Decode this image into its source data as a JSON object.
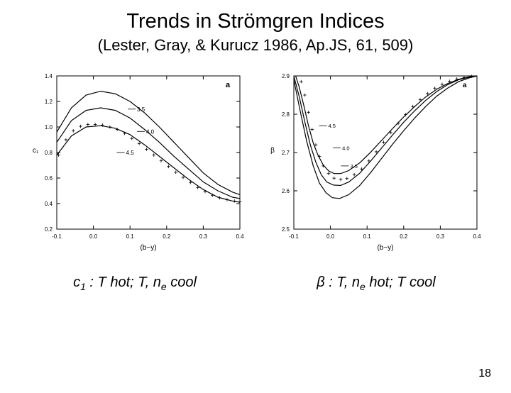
{
  "title": "Trends in Strömgren Indices",
  "subtitle": "(Lester, Gray, & Kurucz 1986, Ap.JS, 61, 509)",
  "page_number": "18",
  "caption_left": {
    "var": "c",
    "sub": "1",
    "tail": " : T hot; T, n",
    "sub2": "e",
    "tail2": " cool"
  },
  "caption_right": {
    "var": "β",
    "tail": " : T, n",
    "sub": "e",
    "tail2": " hot; T cool"
  },
  "chart_left": {
    "type": "line",
    "panel_label": "a",
    "panel_label_fontsize": 11,
    "background_color": "#ffffff",
    "xlabel": "(b−y)",
    "ylabel": "c₁",
    "label_fontsize": 10,
    "tick_fontsize": 8,
    "xlim": [
      -0.1,
      0.4
    ],
    "ylim": [
      0.2,
      1.4
    ],
    "xticks": [
      -0.1,
      0.0,
      0.1,
      0.2,
      0.3,
      0.4
    ],
    "yticks": [
      0.2,
      0.4,
      0.6,
      0.8,
      1.0,
      1.2,
      1.4
    ],
    "curve_labels": [
      "3.5",
      "4.0",
      "4.5"
    ],
    "curve_label_fontsize": 8,
    "curve_color": "#000000",
    "frame_color": "#000000",
    "curves": [
      {
        "name": "3.5",
        "pts": [
          [
            -0.1,
            0.96
          ],
          [
            -0.06,
            1.15
          ],
          [
            -0.02,
            1.25
          ],
          [
            0.02,
            1.28
          ],
          [
            0.06,
            1.26
          ],
          [
            0.1,
            1.2
          ],
          [
            0.14,
            1.11
          ],
          [
            0.18,
            1.0
          ],
          [
            0.22,
            0.88
          ],
          [
            0.26,
            0.76
          ],
          [
            0.3,
            0.64
          ],
          [
            0.34,
            0.55
          ],
          [
            0.38,
            0.49
          ],
          [
            0.4,
            0.47
          ]
        ]
      },
      {
        "name": "4.0",
        "pts": [
          [
            -0.1,
            0.88
          ],
          [
            -0.06,
            1.05
          ],
          [
            -0.02,
            1.13
          ],
          [
            0.02,
            1.15
          ],
          [
            0.06,
            1.13
          ],
          [
            0.1,
            1.07
          ],
          [
            0.14,
            0.98
          ],
          [
            0.18,
            0.88
          ],
          [
            0.22,
            0.77
          ],
          [
            0.26,
            0.67
          ],
          [
            0.3,
            0.57
          ],
          [
            0.34,
            0.5
          ],
          [
            0.38,
            0.45
          ],
          [
            0.4,
            0.44
          ]
        ]
      },
      {
        "name": "4.5",
        "pts": [
          [
            -0.1,
            0.78
          ],
          [
            -0.06,
            0.93
          ],
          [
            -0.02,
            1.0
          ],
          [
            0.02,
            1.01
          ],
          [
            0.06,
            0.99
          ],
          [
            0.1,
            0.94
          ],
          [
            0.14,
            0.86
          ],
          [
            0.18,
            0.77
          ],
          [
            0.22,
            0.68
          ],
          [
            0.26,
            0.59
          ],
          [
            0.3,
            0.51
          ],
          [
            0.34,
            0.45
          ],
          [
            0.38,
            0.42
          ],
          [
            0.4,
            0.41
          ]
        ]
      }
    ],
    "crosses": [
      [
        -0.095,
        0.78
      ],
      [
        -0.075,
        0.9
      ],
      [
        -0.055,
        0.97
      ],
      [
        -0.035,
        1.005
      ],
      [
        -0.015,
        1.02
      ],
      [
        0.005,
        1.02
      ],
      [
        0.025,
        1.015
      ],
      [
        0.045,
        1.0
      ],
      [
        0.065,
        0.98
      ],
      [
        0.085,
        0.95
      ],
      [
        0.105,
        0.91
      ],
      [
        0.125,
        0.87
      ],
      [
        0.145,
        0.825
      ],
      [
        0.165,
        0.78
      ],
      [
        0.185,
        0.735
      ],
      [
        0.205,
        0.69
      ],
      [
        0.225,
        0.645
      ],
      [
        0.245,
        0.605
      ],
      [
        0.265,
        0.565
      ],
      [
        0.285,
        0.525
      ],
      [
        0.305,
        0.495
      ],
      [
        0.325,
        0.465
      ],
      [
        0.345,
        0.445
      ],
      [
        0.365,
        0.43
      ],
      [
        0.385,
        0.42
      ],
      [
        0.4,
        0.415
      ]
    ],
    "label_anchors": {
      "3.5": [
        0.09,
        1.14
      ],
      "4.0": [
        0.115,
        0.965
      ],
      "4.5": [
        0.06,
        0.8
      ]
    }
  },
  "chart_right": {
    "type": "line",
    "panel_label": "a",
    "panel_label_fontsize": 10,
    "background_color": "#ffffff",
    "xlabel": "(b−y)",
    "ylabel": "β",
    "label_fontsize": 10,
    "tick_fontsize": 8,
    "xlim": [
      -0.1,
      0.4
    ],
    "ylim": [
      2.5,
      2.9
    ],
    "xticks": [
      -0.1,
      0.0,
      0.1,
      0.2,
      0.3,
      0.4
    ],
    "yticks": [
      2.5,
      2.6,
      2.7,
      2.8,
      2.9
    ],
    "curve_labels": [
      "3.5",
      "4.0",
      "4.5"
    ],
    "curve_label_fontsize": 7.5,
    "curve_color": "#000000",
    "frame_color": "#000000",
    "curves": [
      {
        "name": "3.5",
        "pts": [
          [
            -0.1,
            2.89
          ],
          [
            -0.083,
            2.81
          ],
          [
            -0.065,
            2.73
          ],
          [
            -0.047,
            2.665
          ],
          [
            -0.03,
            2.62
          ],
          [
            -0.012,
            2.595
          ],
          [
            0.005,
            2.582
          ],
          [
            0.025,
            2.58
          ],
          [
            0.05,
            2.59
          ],
          [
            0.08,
            2.614
          ],
          [
            0.11,
            2.648
          ],
          [
            0.14,
            2.685
          ],
          [
            0.17,
            2.722
          ],
          [
            0.2,
            2.757
          ],
          [
            0.23,
            2.79
          ],
          [
            0.26,
            2.82
          ],
          [
            0.29,
            2.847
          ],
          [
            0.32,
            2.868
          ],
          [
            0.35,
            2.885
          ],
          [
            0.38,
            2.895
          ],
          [
            0.4,
            2.9
          ]
        ]
      },
      {
        "name": "4.0",
        "pts": [
          [
            -0.1,
            2.9
          ],
          [
            -0.085,
            2.845
          ],
          [
            -0.07,
            2.78
          ],
          [
            -0.055,
            2.72
          ],
          [
            -0.04,
            2.675
          ],
          [
            -0.025,
            2.642
          ],
          [
            -0.01,
            2.623
          ],
          [
            0.008,
            2.615
          ],
          [
            0.028,
            2.614
          ],
          [
            0.05,
            2.623
          ],
          [
            0.08,
            2.646
          ],
          [
            0.11,
            2.678
          ],
          [
            0.14,
            2.712
          ],
          [
            0.17,
            2.746
          ],
          [
            0.2,
            2.779
          ],
          [
            0.23,
            2.809
          ],
          [
            0.26,
            2.836
          ],
          [
            0.29,
            2.859
          ],
          [
            0.32,
            2.877
          ],
          [
            0.35,
            2.89
          ],
          [
            0.38,
            2.897
          ],
          [
            0.4,
            2.9
          ]
        ]
      },
      {
        "name": "4.5",
        "pts": [
          [
            -0.095,
            2.9
          ],
          [
            -0.085,
            2.87
          ],
          [
            -0.072,
            2.82
          ],
          [
            -0.06,
            2.77
          ],
          [
            -0.047,
            2.725
          ],
          [
            -0.034,
            2.693
          ],
          [
            -0.02,
            2.668
          ],
          [
            -0.005,
            2.652
          ],
          [
            0.01,
            2.645
          ],
          [
            0.028,
            2.645
          ],
          [
            0.05,
            2.653
          ],
          [
            0.08,
            2.673
          ],
          [
            0.11,
            2.701
          ],
          [
            0.14,
            2.732
          ],
          [
            0.17,
            2.763
          ],
          [
            0.2,
            2.793
          ],
          [
            0.23,
            2.82
          ],
          [
            0.26,
            2.845
          ],
          [
            0.29,
            2.865
          ],
          [
            0.32,
            2.88
          ],
          [
            0.35,
            2.891
          ],
          [
            0.38,
            2.898
          ],
          [
            0.4,
            2.9
          ]
        ]
      }
    ],
    "crosses": [
      [
        -0.08,
        2.885
      ],
      [
        -0.07,
        2.85
      ],
      [
        -0.06,
        2.805
      ],
      [
        -0.05,
        2.76
      ],
      [
        -0.04,
        2.72
      ],
      [
        -0.03,
        2.69
      ],
      [
        -0.02,
        2.665
      ],
      [
        -0.005,
        2.645
      ],
      [
        0.01,
        2.633
      ],
      [
        0.028,
        2.63
      ],
      [
        0.045,
        2.632
      ],
      [
        0.065,
        2.642
      ],
      [
        0.085,
        2.657
      ],
      [
        0.105,
        2.678
      ],
      [
        0.125,
        2.702
      ],
      [
        0.145,
        2.727
      ],
      [
        0.165,
        2.752
      ],
      [
        0.185,
        2.776
      ],
      [
        0.205,
        2.799
      ],
      [
        0.225,
        2.82
      ],
      [
        0.245,
        2.838
      ],
      [
        0.265,
        2.854
      ],
      [
        0.285,
        2.868
      ],
      [
        0.305,
        2.878
      ],
      [
        0.325,
        2.886
      ],
      [
        0.345,
        2.892
      ],
      [
        0.365,
        2.896
      ],
      [
        0.385,
        2.899
      ]
    ],
    "label_anchors": {
      "3.5": [
        0.025,
        2.665
      ],
      "4.0": [
        0.003,
        2.712
      ],
      "4.5": [
        -0.035,
        2.77
      ]
    }
  }
}
